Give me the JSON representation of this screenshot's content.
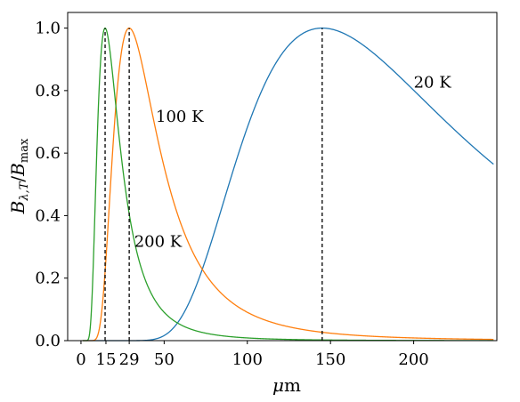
{
  "chart_data": {
    "type": "line",
    "xlabel_var": "μ",
    "xlabel_unit": "m",
    "ylabel_base": "B",
    "ylabel_sub": "λ,T",
    "ylabel_sep": "/",
    "ylabel_base2": "B",
    "ylabel_sub2": "max",
    "xlim": [
      -8,
      250
    ],
    "ylim": [
      0,
      1.05
    ],
    "x_ticks": [
      0,
      15,
      29,
      50,
      100,
      150,
      200
    ],
    "x_tick_labels": [
      "0",
      "15",
      "29",
      "50",
      "100",
      "150",
      "200"
    ],
    "y_ticks": [
      0.0,
      0.2,
      0.4,
      0.6,
      0.8,
      1.0
    ],
    "y_tick_labels": [
      "0.0",
      "0.2",
      "0.4",
      "0.6",
      "0.8",
      "1.0"
    ],
    "grid": false,
    "legend": "none",
    "x_range_curves": [
      1,
      248
    ],
    "series": [
      {
        "temperature_K": 20,
        "peak_x": 145,
        "color": "#1f77b4"
      },
      {
        "temperature_K": 100,
        "peak_x": 29,
        "color": "#ff7f0e"
      },
      {
        "temperature_K": 200,
        "peak_x": 14.5,
        "color": "#2ca02c"
      }
    ],
    "peak_markers": [
      {
        "x": 14.5,
        "style": "dashed",
        "color": "#000000"
      },
      {
        "x": 29,
        "style": "dashed",
        "color": "#000000"
      },
      {
        "x": 145,
        "style": "dashed",
        "color": "#000000"
      }
    ],
    "annotations": [
      {
        "text": "20 K",
        "x": 200,
        "y": 0.81
      },
      {
        "text": "100 K",
        "x": 45,
        "y": 0.7
      },
      {
        "text": "200 K",
        "x": 32,
        "y": 0.3
      }
    ]
  }
}
